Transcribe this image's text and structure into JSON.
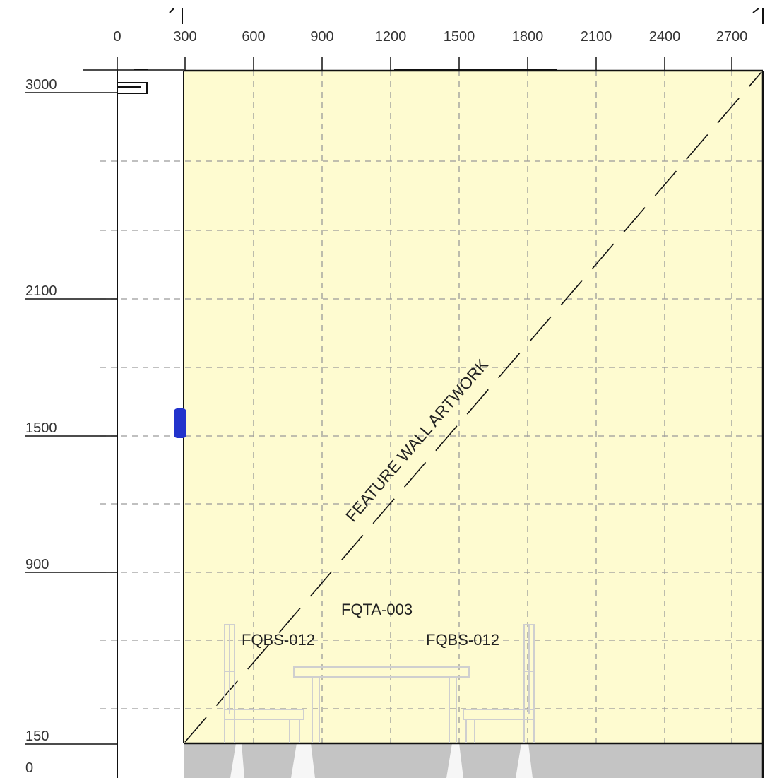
{
  "drawing": {
    "x_ticks": [
      "0",
      "300",
      "600",
      "900",
      "1200",
      "1500",
      "1800",
      "2100",
      "2400",
      "2700"
    ],
    "y_ticks": [
      "3000",
      "2100",
      "1500",
      "900",
      "150",
      "0"
    ],
    "labels": {
      "artwork": "FEATURE WALL ARTWORK",
      "table": "FQTA-003",
      "bench_left": "FQBS-012",
      "bench_right": "FQBS-012"
    },
    "colors": {
      "wall_fill": "#fefbd0",
      "floor_fill": "#c4c4c4",
      "grid": "#9a9a9a",
      "outline": "#111111",
      "furniture": "#cfcfcf",
      "marker": "#2233cc"
    },
    "icons": {
      "level_marker": "blue-handle-icon",
      "origin_bracket": "bracket-icon"
    }
  }
}
